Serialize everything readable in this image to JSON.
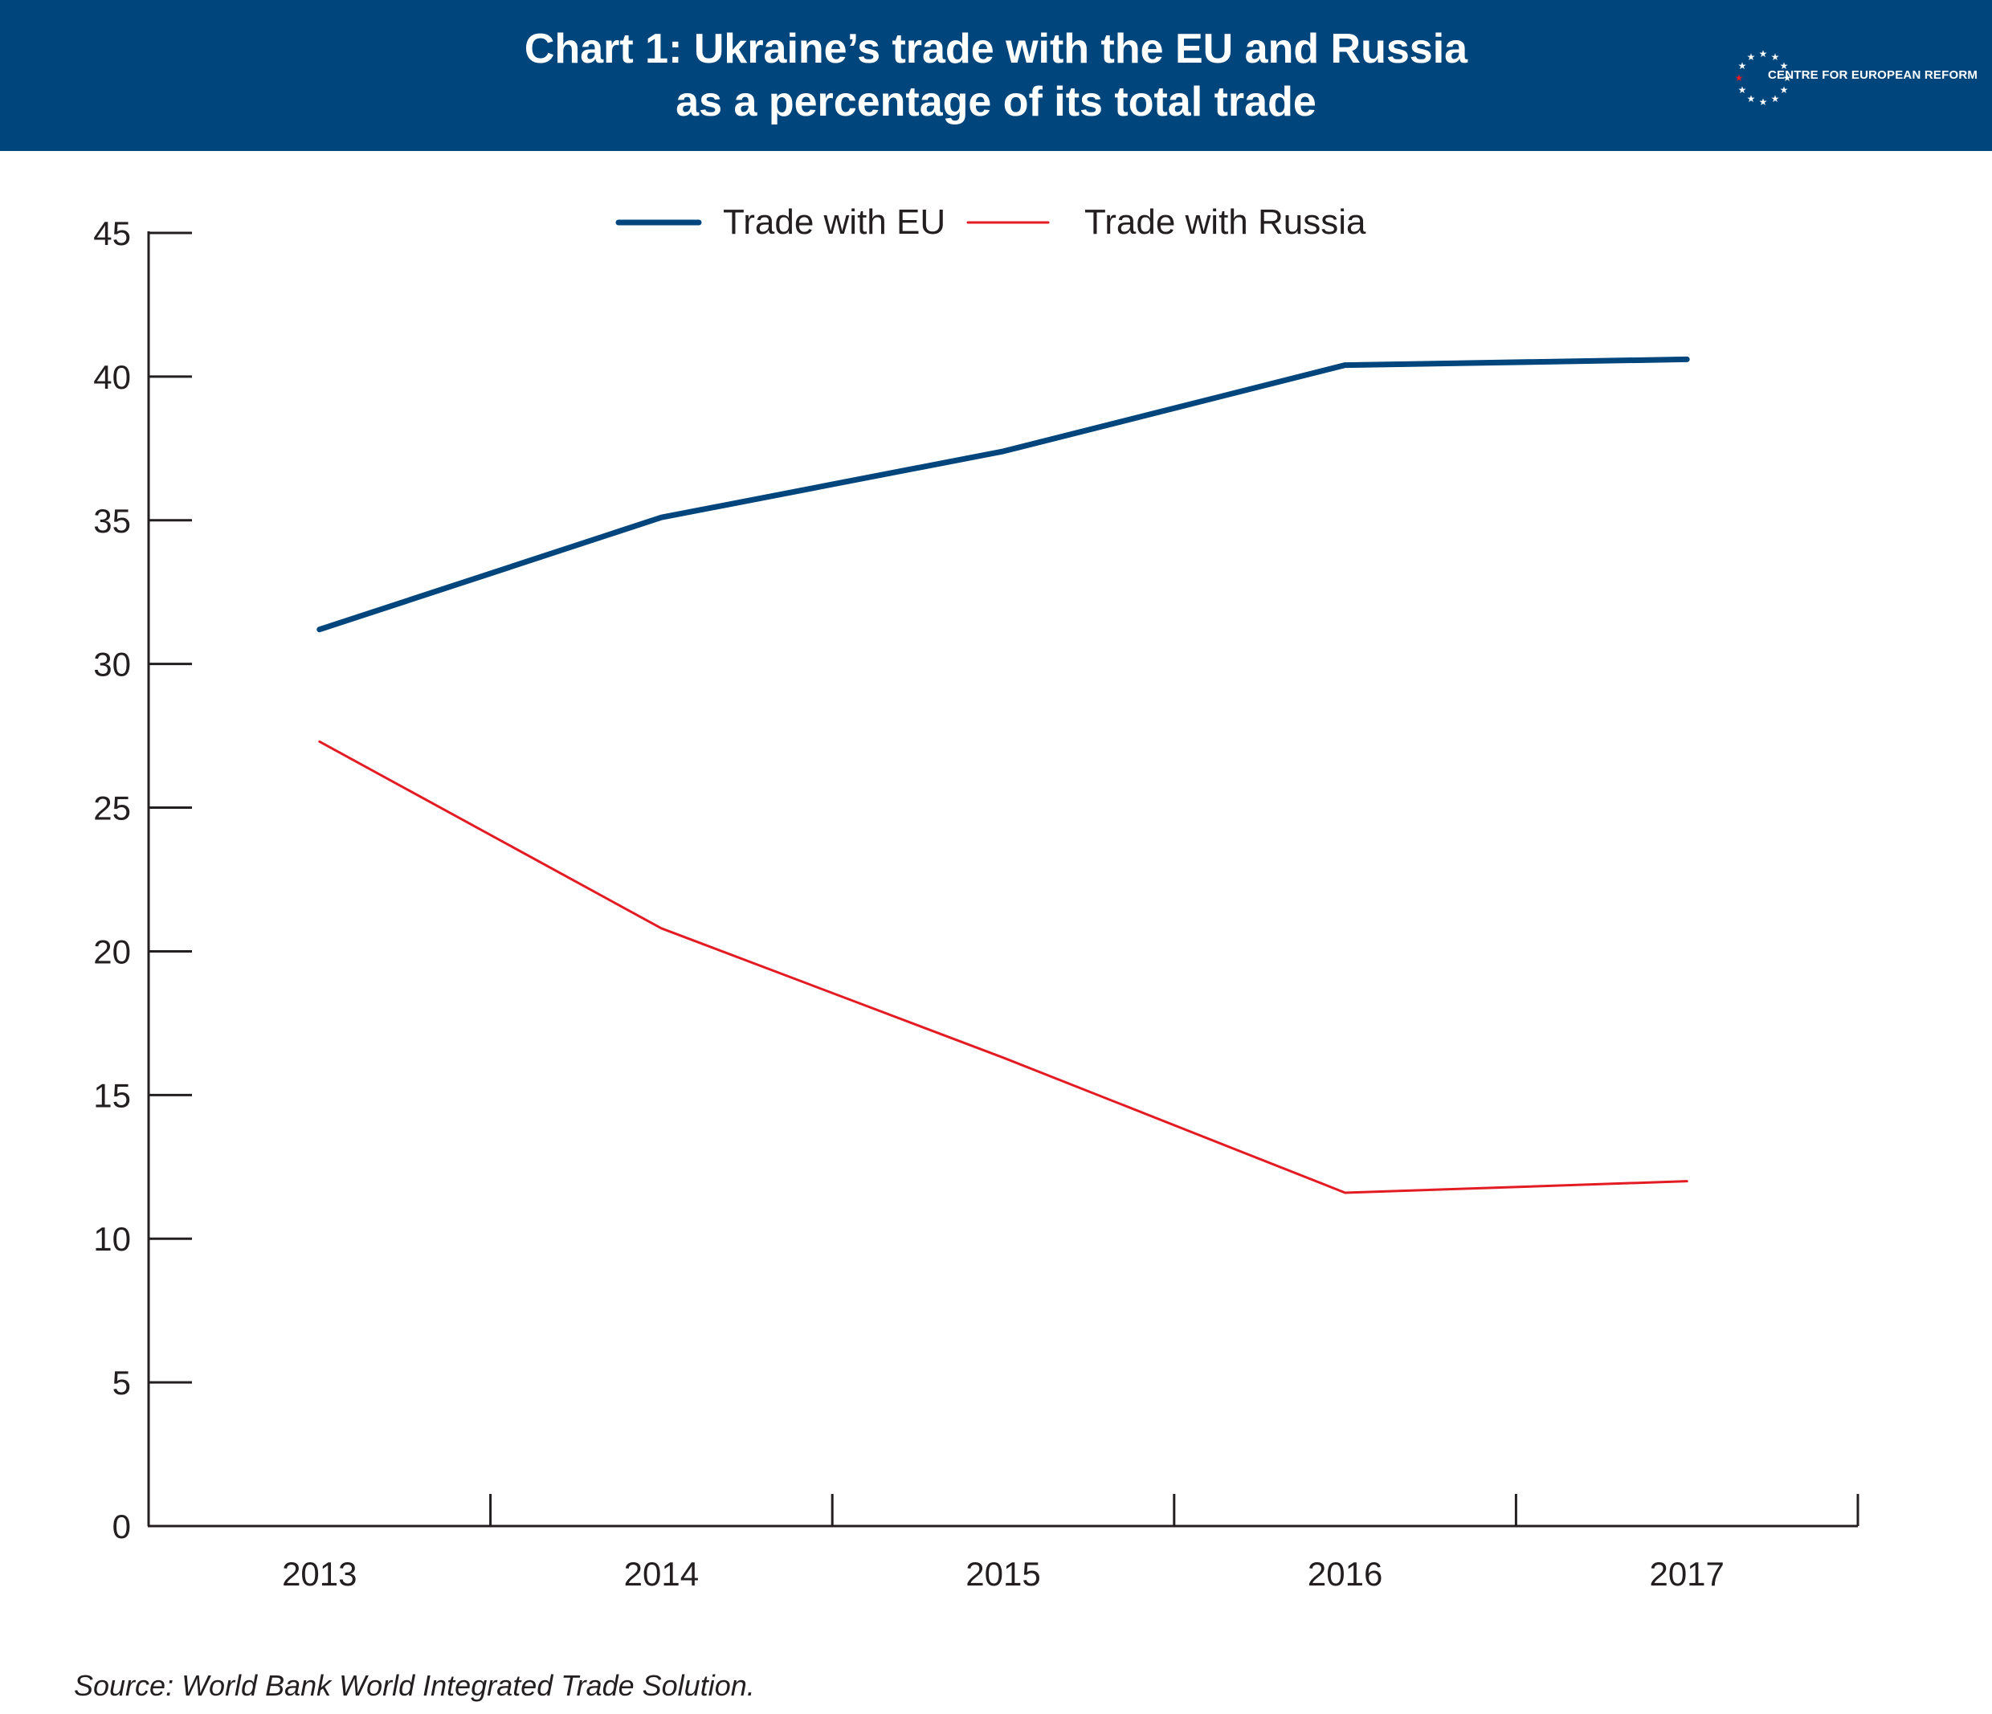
{
  "header": {
    "title_line1": "Chart 1: Ukraine’s trade with the EU and Russia",
    "title_line2": "as a percentage of its total trade",
    "logo_text": "CENTRE FOR EUROPEAN REFORM"
  },
  "source": "Source: World Bank World Integrated Trade Solution.",
  "colors": {
    "header_bg": "#00457c",
    "eu": "#00457c",
    "russia": "#e31b23"
  },
  "chart_data": {
    "type": "line",
    "title": "Chart 1: Ukraine’s trade with the EU and Russia as a percentage of its total trade",
    "xlabel": "",
    "ylabel": "",
    "categories": [
      "2013",
      "2014",
      "2015",
      "2016",
      "2017"
    ],
    "ylim": [
      0,
      45
    ],
    "yticks": [
      0,
      5,
      10,
      15,
      20,
      25,
      30,
      35,
      40,
      45
    ],
    "grid": false,
    "legend_position": "top-center",
    "series": [
      {
        "name": "Trade with EU",
        "values": [
          31.2,
          35.1,
          37.4,
          40.4,
          40.6
        ],
        "color": "#00457c",
        "width": "thick"
      },
      {
        "name": "Trade with Russia",
        "values": [
          27.3,
          20.8,
          16.3,
          11.6,
          12.0
        ],
        "color": "#e31b23",
        "width": "thin"
      }
    ]
  }
}
